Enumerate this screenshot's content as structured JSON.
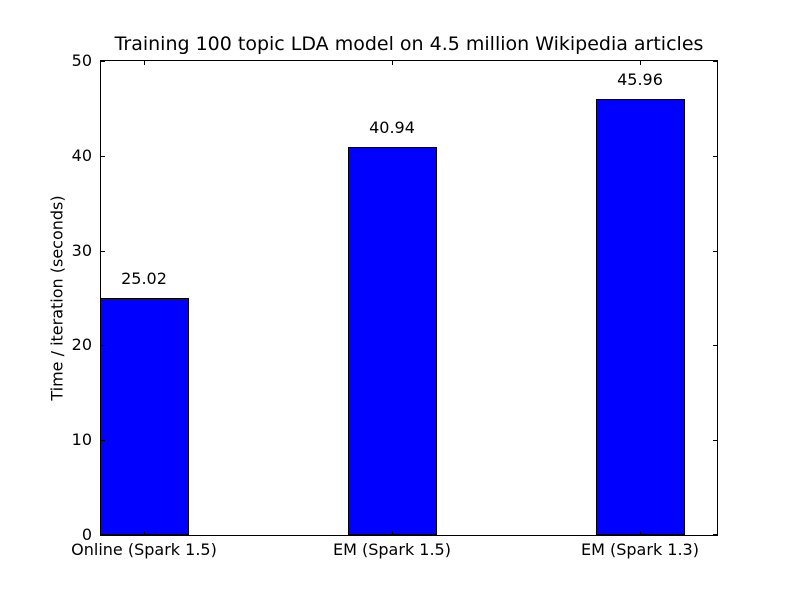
{
  "figure": {
    "title": "Training 100 topic LDA model on 4.5 million Wikipedia articles",
    "ylabel": "Time / iteration (seconds)"
  },
  "chart_data": {
    "type": "bar",
    "title": "Training 100 topic LDA model on 4.5 million Wikipedia articles",
    "xlabel": "",
    "ylabel": "Time / iteration (seconds)",
    "categories": [
      "Online (Spark 1.5)",
      "EM (Spark 1.5)",
      "EM (Spark 1.3)"
    ],
    "values": [
      25.02,
      40.94,
      45.96
    ],
    "bar_labels": [
      "25.02",
      "40.94",
      "45.96"
    ],
    "ylim": [
      0,
      50
    ],
    "yticks": [
      0,
      10,
      20,
      30,
      40,
      50
    ],
    "grid": false,
    "legend": null,
    "bar_color": "#0000ff",
    "bar_edge_color": "#000000",
    "background_color": "#ffffff",
    "spine_color": "#000000"
  }
}
